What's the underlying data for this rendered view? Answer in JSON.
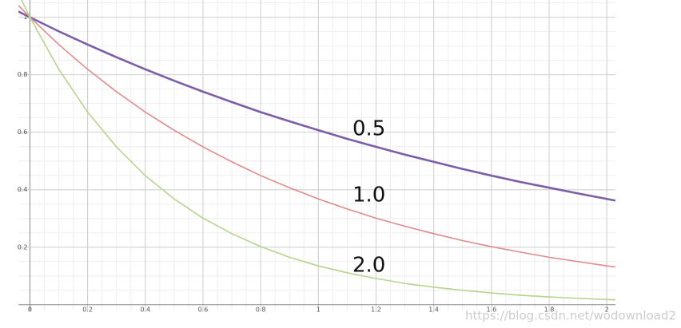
{
  "chart_data": {
    "type": "line",
    "x": [
      -0.04,
      0,
      0.1,
      0.2,
      0.3,
      0.4,
      0.5,
      0.6,
      0.7,
      0.8,
      0.9,
      1.0,
      1.1,
      1.2,
      1.3,
      1.4,
      1.5,
      1.6,
      1.7,
      1.8,
      1.9,
      2.0,
      2.03
    ],
    "series": [
      {
        "name": "0.5",
        "color": "#7b5ea7",
        "values": [
          1.02,
          1,
          0.951,
          0.905,
          0.861,
          0.819,
          0.779,
          0.741,
          0.705,
          0.67,
          0.638,
          0.607,
          0.577,
          0.549,
          0.522,
          0.497,
          0.472,
          0.449,
          0.427,
          0.407,
          0.387,
          0.368,
          0.362
        ]
      },
      {
        "name": "1.0",
        "color": "#e08a8a",
        "values": [
          1.041,
          1,
          0.905,
          0.819,
          0.741,
          0.67,
          0.607,
          0.549,
          0.497,
          0.449,
          0.407,
          0.368,
          0.333,
          0.301,
          0.273,
          0.247,
          0.223,
          0.202,
          0.183,
          0.165,
          0.15,
          0.135,
          0.131
        ]
      },
      {
        "name": "2.0",
        "color": "#b5d48e",
        "values": [
          1.083,
          1,
          0.819,
          0.67,
          0.549,
          0.449,
          0.368,
          0.301,
          0.247,
          0.202,
          0.165,
          0.135,
          0.111,
          0.091,
          0.074,
          0.061,
          0.05,
          0.041,
          0.033,
          0.027,
          0.022,
          0.018,
          0.017
        ]
      }
    ],
    "xlim": [
      -0.04,
      2.03
    ],
    "ylim": [
      -0.02,
      1.06
    ],
    "xticks": [
      0,
      0.2,
      0.4,
      0.6,
      0.8,
      1,
      1.2,
      1.4,
      1.6,
      1.8,
      2
    ],
    "yticks": [
      0.2,
      0.4,
      0.6,
      0.8,
      1
    ],
    "grid": true,
    "minor_grid_divisions": 4,
    "watermark": "https://blog.csdn.net/wodownload2"
  }
}
